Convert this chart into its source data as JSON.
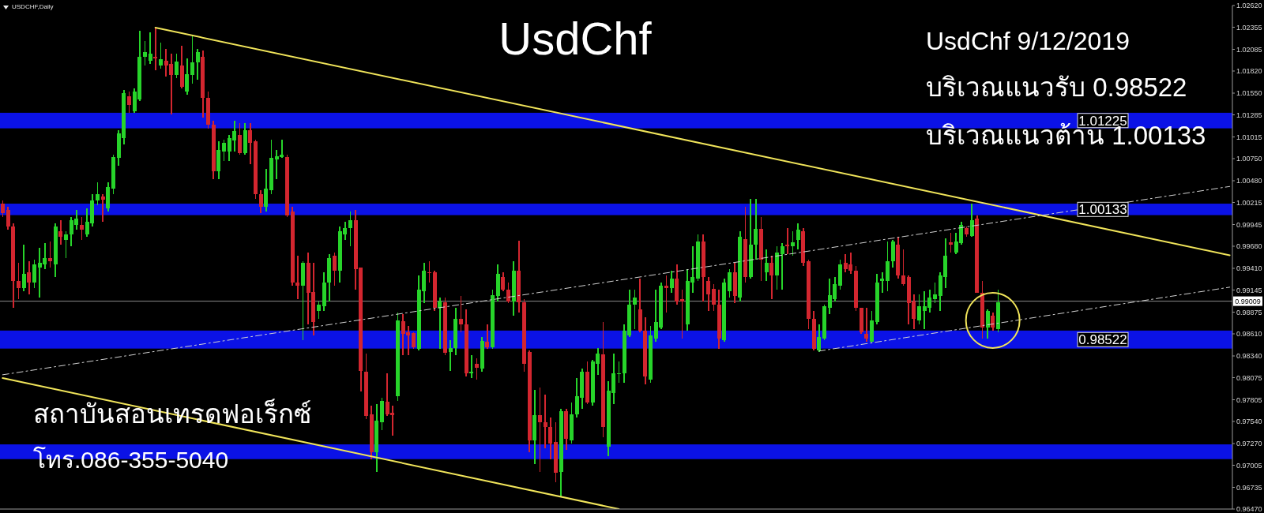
{
  "chart_data": {
    "type": "candlestick",
    "title": "UsdChf",
    "subtitle": "USDCHF,Daily",
    "annotations": [
      "UsdChf 9/12/2019",
      "บริเวณแนวรับ 0.98522",
      "บริเวณแนวต้าน 1.00133",
      "สถาบันสอนเทรดฟอเร็กซ์",
      "โทร.086-355-5040"
    ],
    "categories": [
      null,
      null,
      null,
      null,
      null,
      null,
      null,
      null,
      null,
      null,
      null,
      null,
      null,
      null,
      null,
      null,
      null,
      null,
      null,
      null,
      null,
      null,
      null,
      null,
      null,
      null,
      null,
      null,
      null,
      null,
      null,
      null,
      null,
      null,
      null,
      null,
      null,
      null,
      null,
      null,
      null,
      null,
      null,
      null,
      null,
      null,
      null,
      null,
      null,
      null,
      null,
      null,
      null,
      null,
      null,
      null,
      null,
      null,
      null,
      null,
      null,
      null,
      null,
      null,
      null,
      null,
      null,
      null,
      null,
      null,
      null,
      null,
      null,
      null,
      null,
      null,
      null,
      null,
      null,
      null,
      null,
      null,
      null,
      null,
      null,
      null,
      null,
      null,
      null,
      null,
      null,
      null,
      null,
      null,
      null,
      null,
      null,
      null,
      null,
      null,
      null,
      null,
      null,
      null,
      null,
      null,
      null,
      null,
      null,
      null,
      null,
      null,
      null,
      null,
      null,
      null,
      null,
      null,
      null,
      null,
      null,
      null,
      null,
      null,
      null,
      null,
      null,
      null,
      null,
      null,
      null,
      null,
      null,
      null,
      null,
      null,
      null,
      null,
      null,
      null,
      null,
      null,
      null,
      null,
      null,
      null,
      null,
      null,
      null,
      null,
      null,
      null,
      null,
      null,
      null,
      null,
      null,
      null,
      null,
      null,
      null,
      null,
      null,
      null,
      null,
      null,
      null,
      null,
      null,
      null,
      null,
      null,
      null,
      null,
      null,
      null,
      null,
      null,
      null,
      null,
      null,
      null,
      null,
      null,
      null,
      null,
      null,
      null,
      null,
      null,
      null,
      null,
      null,
      null,
      null,
      null,
      null,
      null,
      null,
      null,
      null,
      null,
      null,
      null,
      null,
      null,
      null,
      null,
      null,
      null,
      null,
      null,
      null,
      null,
      null,
      null,
      null,
      null,
      null,
      null,
      null,
      null,
      null,
      null,
      null,
      null,
      null,
      null,
      null,
      null,
      null,
      null,
      null,
      null
    ],
    "ohlc": [
      [
        1.002,
        1.0024,
        1.0004,
        1.0008
      ],
      [
        1.0012,
        1.0016,
        0.9988,
        0.9992
      ],
      [
        0.9992,
        0.9996,
        0.9893,
        0.9926
      ],
      [
        0.9926,
        0.9948,
        0.9903,
        0.9917
      ],
      [
        0.9917,
        0.997,
        0.9913,
        0.9934
      ],
      [
        0.9936,
        0.995,
        0.9909,
        0.9924
      ],
      [
        0.9924,
        0.9952,
        0.9917,
        0.9946
      ],
      [
        0.9942,
        0.9966,
        0.9905,
        0.9948
      ],
      [
        0.9946,
        0.9972,
        0.994,
        0.9954
      ],
      [
        0.9954,
        0.9974,
        0.9942,
        0.995
      ],
      [
        0.9946,
        0.9996,
        0.993,
        0.9992
      ],
      [
        0.9986,
        1.0,
        0.997,
        0.998
      ],
      [
        0.9976,
        0.9986,
        0.9954,
        0.9982
      ],
      [
        0.9982,
        1.0004,
        0.9968,
        1.0
      ],
      [
        0.9994,
        1.0012,
        0.9988,
        1.0002
      ],
      [
        0.9994,
        1.0004,
        0.9976,
        0.9988
      ],
      [
        0.9982,
        1.0014,
        0.998,
        0.9998
      ],
      [
        0.9996,
        1.0032,
        0.9992,
        1.0024
      ],
      [
        1.0024,
        1.0046,
        1.0018,
        1.0032
      ],
      [
        1.0029,
        1.0032,
        0.9998,
        1.0025
      ],
      [
        1.0014,
        1.0046,
        1.001,
        1.004
      ],
      [
        1.0038,
        1.008,
        1.0032,
        1.0077
      ],
      [
        1.0076,
        1.011,
        1.0066,
        1.0106
      ],
      [
        1.01,
        1.0159,
        1.0092,
        1.0155
      ],
      [
        1.0151,
        1.0157,
        1.0131,
        1.0141
      ],
      [
        1.0133,
        1.0161,
        1.0131,
        1.0157
      ],
      [
        1.0147,
        1.0231,
        1.0145,
        1.0199
      ],
      [
        1.0199,
        1.0219,
        1.0189,
        1.0205
      ],
      [
        1.0195,
        1.0229,
        1.0191,
        1.0203
      ],
      [
        1.0199,
        1.0235,
        1.0183,
        1.0197
      ],
      [
        1.0189,
        1.0217,
        1.0185,
        1.0196
      ],
      [
        1.0195,
        1.0209,
        1.0175,
        1.0189
      ],
      [
        1.0191,
        1.0203,
        1.0129,
        1.0177
      ],
      [
        1.0177,
        1.0203,
        1.0173,
        1.0194
      ],
      [
        1.0189,
        1.0213,
        1.0161,
        1.0163
      ],
      [
        1.0157,
        1.0197,
        1.0153,
        1.0178
      ],
      [
        1.0177,
        1.0225,
        1.0167,
        1.0193
      ],
      [
        1.0193,
        1.0209,
        1.0171,
        1.0205
      ],
      [
        1.0199,
        1.0207,
        1.0125,
        1.0149
      ],
      [
        1.0149,
        1.0157,
        1.0112,
        1.0116
      ],
      [
        1.0116,
        1.0121,
        1.005,
        1.006
      ],
      [
        1.006,
        1.0096,
        1.005,
        1.0086
      ],
      [
        1.0084,
        1.0098,
        1.0072,
        1.0094
      ],
      [
        1.0084,
        1.0104,
        1.0072,
        1.01
      ],
      [
        1.0097,
        1.0121,
        1.0084,
        1.0109
      ],
      [
        1.0104,
        1.0118,
        1.008,
        1.0082
      ],
      [
        1.0082,
        1.0118,
        1.008,
        1.011
      ],
      [
        1.011,
        1.0118,
        1.0068,
        1.0094
      ],
      [
        1.0096,
        1.0098,
        1.0026,
        1.0032
      ],
      [
        1.0032,
        1.0036,
        1.0008,
        1.0016
      ],
      [
        1.0016,
        1.0062,
        1.001,
        1.0038
      ],
      [
        1.0036,
        1.0098,
        1.0032,
        1.0076
      ],
      [
        1.0074,
        1.0086,
        1.005,
        1.0078
      ],
      [
        1.0077,
        1.0098,
        1.0076,
        1.008
      ],
      [
        1.0077,
        1.008,
        1.0004,
        1.0006
      ],
      [
        1.001,
        1.0016,
        0.992,
        0.9924
      ],
      [
        0.9924,
        0.9956,
        0.9903,
        0.992
      ],
      [
        0.992,
        0.995,
        0.9853,
        0.9948
      ],
      [
        0.9948,
        0.996,
        0.9873,
        0.9911
      ],
      [
        0.9912,
        0.9948,
        0.9859,
        0.9875
      ],
      [
        0.9889,
        0.9901,
        0.9879,
        0.9897
      ],
      [
        0.9895,
        0.9936,
        0.9889,
        0.9924
      ],
      [
        0.9924,
        0.9958,
        0.9901,
        0.9954
      ],
      [
        0.9956,
        0.996,
        0.992,
        0.9938
      ],
      [
        0.9938,
        0.9992,
        0.9924,
        0.9986
      ],
      [
        0.9982,
        0.9998,
        0.9976,
        0.999
      ],
      [
        0.999,
        1.001,
        0.9968,
        1.0
      ],
      [
        1.0,
        1.0012,
        0.9915,
        0.994
      ],
      [
        0.9942,
        0.9942,
        0.9791,
        0.9816
      ],
      [
        0.9815,
        0.9837,
        0.9757,
        0.9761
      ],
      [
        0.9763,
        0.9773,
        0.9708,
        0.9716
      ],
      [
        0.9716,
        0.9775,
        0.9692,
        0.9755
      ],
      [
        0.9753,
        0.9783,
        0.9743,
        0.9779
      ],
      [
        0.9778,
        0.9813,
        0.9761,
        0.9763
      ],
      [
        0.9765,
        0.9773,
        0.9737,
        0.9762
      ],
      [
        0.9785,
        0.9887,
        0.9779,
        0.9877
      ],
      [
        0.9876,
        0.9885,
        0.9835,
        0.9861
      ],
      [
        0.9863,
        0.9871,
        0.9835,
        0.9859
      ],
      [
        0.9862,
        0.9863,
        0.9843,
        0.9845
      ],
      [
        0.9843,
        0.9932,
        0.9841,
        0.9915
      ],
      [
        0.9913,
        0.9948,
        0.9899,
        0.9938
      ],
      [
        0.9936,
        0.995,
        0.9924,
        0.9935
      ],
      [
        0.9936,
        0.9938,
        0.9889,
        0.9893
      ],
      [
        0.9893,
        0.9905,
        0.9843,
        0.9901
      ],
      [
        0.99,
        0.9905,
        0.9835,
        0.9838
      ],
      [
        0.9839,
        0.9853,
        0.9816,
        0.9844
      ],
      [
        0.9844,
        0.9893,
        0.9835,
        0.9879
      ],
      [
        0.9879,
        0.9907,
        0.9863,
        0.9873
      ],
      [
        0.9873,
        0.9891,
        0.9809,
        0.9813
      ],
      [
        0.9813,
        0.9835,
        0.9807,
        0.9815
      ],
      [
        0.9824,
        0.9831,
        0.9805,
        0.982
      ],
      [
        0.9819,
        0.9857,
        0.9815,
        0.9852
      ],
      [
        0.9851,
        0.9873,
        0.9843,
        0.9845
      ],
      [
        0.9845,
        0.9915,
        0.9843,
        0.9908
      ],
      [
        0.9907,
        0.9946,
        0.9901,
        0.9934
      ],
      [
        0.993,
        0.9936,
        0.9913,
        0.9915
      ],
      [
        0.9915,
        0.9924,
        0.9899,
        0.9901
      ],
      [
        0.9901,
        0.995,
        0.9883,
        0.9938
      ],
      [
        0.9938,
        0.9975,
        0.9887,
        0.99
      ],
      [
        0.99,
        0.9903,
        0.9815,
        0.9824
      ],
      [
        0.9839,
        0.9841,
        0.9716,
        0.9731
      ],
      [
        0.9731,
        0.9793,
        0.9702,
        0.9762
      ],
      [
        0.9762,
        0.9795,
        0.9692,
        0.9753
      ],
      [
        0.9753,
        0.9787,
        0.9721,
        0.9747
      ],
      [
        0.9747,
        0.9759,
        0.9708,
        0.9727
      ],
      [
        0.9729,
        0.9753,
        0.968,
        0.9691
      ],
      [
        0.9692,
        0.9769,
        0.9662,
        0.9767
      ],
      [
        0.9767,
        0.9769,
        0.9719,
        0.9733
      ],
      [
        0.9731,
        0.9777,
        0.9727,
        0.9763
      ],
      [
        0.9763,
        0.9807,
        0.9759,
        0.9785
      ],
      [
        0.9783,
        0.9819,
        0.9769,
        0.9815
      ],
      [
        0.9815,
        0.9827,
        0.9775,
        0.9777
      ],
      [
        0.9777,
        0.9829,
        0.9773,
        0.9827
      ],
      [
        0.9824,
        0.9844,
        0.9811,
        0.9837
      ],
      [
        0.9836,
        0.9875,
        0.9735,
        0.9747
      ],
      [
        0.9723,
        0.9803,
        0.9712,
        0.9792
      ],
      [
        0.9789,
        0.9837,
        0.9775,
        0.9813
      ],
      [
        0.9812,
        0.9827,
        0.9801,
        0.9813
      ],
      [
        0.9813,
        0.9873,
        0.9801,
        0.9865
      ],
      [
        0.9859,
        0.9915,
        0.9857,
        0.9897
      ],
      [
        0.9897,
        0.9915,
        0.9867,
        0.9905
      ],
      [
        0.9891,
        0.9928,
        0.9863,
        0.9865
      ],
      [
        0.9865,
        0.9881,
        0.9799,
        0.9809
      ],
      [
        0.9805,
        0.9871,
        0.9801,
        0.9859
      ],
      [
        0.9855,
        0.9915,
        0.9851,
        0.9875
      ],
      [
        0.9869,
        0.9924,
        0.9867,
        0.992
      ],
      [
        0.992,
        0.9932,
        0.9887,
        0.9917
      ],
      [
        0.9917,
        0.9938,
        0.9911,
        0.9928
      ],
      [
        0.9928,
        0.9946,
        0.9897,
        0.9901
      ],
      [
        0.9903,
        0.9915,
        0.9855,
        0.9901
      ],
      [
        0.9873,
        0.994,
        0.9865,
        0.9926
      ],
      [
        0.9924,
        0.9968,
        0.9911,
        0.993
      ],
      [
        0.9928,
        0.9982,
        0.9926,
        0.9974
      ],
      [
        0.9974,
        0.9982,
        0.9901,
        0.993
      ],
      [
        0.9926,
        0.993,
        0.9889,
        0.9909
      ],
      [
        0.9916,
        0.9922,
        0.9889,
        0.9897
      ],
      [
        0.9897,
        0.9915,
        0.9843,
        0.9855
      ],
      [
        0.9853,
        0.9928,
        0.9851,
        0.9924
      ],
      [
        0.9913,
        0.994,
        0.9905,
        0.9936
      ],
      [
        0.9936,
        0.9948,
        0.9899,
        0.9907
      ],
      [
        0.9905,
        0.9986,
        0.9901,
        0.998
      ],
      [
        0.9977,
        1.0016,
        0.9924,
        0.993
      ],
      [
        0.993,
        1.0026,
        0.9928,
        0.997
      ],
      [
        0.997,
        1.0026,
        0.9952,
        0.9989
      ],
      [
        0.9989,
        1.0004,
        0.9926,
        0.9952
      ],
      [
        0.9936,
        0.9964,
        0.9926,
        0.9948
      ],
      [
        0.9948,
        0.9956,
        0.9903,
        0.9932
      ],
      [
        0.9932,
        0.9968,
        0.9915,
        0.996
      ],
      [
        0.9958,
        0.9972,
        0.9915,
        0.9968
      ],
      [
        0.997,
        0.999,
        0.9958,
        0.9968
      ],
      [
        0.9968,
        0.9986,
        0.9956,
        0.9973
      ],
      [
        0.9976,
        0.9996,
        0.9964,
        0.9988
      ],
      [
        0.9986,
        0.999,
        0.9944,
        0.9948
      ],
      [
        0.995,
        0.9952,
        0.9867,
        0.9879
      ],
      [
        0.9879,
        0.9889,
        0.9841,
        0.9843
      ],
      [
        0.9841,
        0.9873,
        0.9839,
        0.9857
      ],
      [
        0.9855,
        0.9897,
        0.9853,
        0.9895
      ],
      [
        0.9893,
        0.9928,
        0.9885,
        0.9908
      ],
      [
        0.9903,
        0.993,
        0.9901,
        0.9922
      ],
      [
        0.992,
        0.9952,
        0.9915,
        0.9946
      ],
      [
        0.9948,
        0.9958,
        0.9936,
        0.994
      ],
      [
        0.9946,
        0.996,
        0.9934,
        0.9938
      ],
      [
        0.9938,
        0.9944,
        0.9889,
        0.9893
      ],
      [
        0.9893,
        0.9893,
        0.9861,
        0.9863
      ],
      [
        0.9861,
        0.9893,
        0.9851,
        0.9855
      ],
      [
        0.9851,
        0.9889,
        0.9849,
        0.9877
      ],
      [
        0.9875,
        0.9934,
        0.9873,
        0.9924
      ],
      [
        0.9926,
        0.9936,
        0.9911,
        0.9928
      ],
      [
        0.9926,
        0.9974,
        0.9913,
        0.995
      ],
      [
        0.995,
        0.9976,
        0.9942,
        0.9974
      ],
      [
        0.997,
        0.998,
        0.9928,
        0.9932
      ],
      [
        0.9932,
        0.9964,
        0.992,
        0.9922
      ],
      [
        0.993,
        0.9932,
        0.9873,
        0.9899
      ],
      [
        0.9901,
        0.9909,
        0.9867,
        0.9879
      ],
      [
        0.9877,
        0.9909,
        0.9873,
        0.9895
      ],
      [
        0.9889,
        0.9913,
        0.9867,
        0.9895
      ],
      [
        0.9893,
        0.9915,
        0.9887,
        0.9905
      ],
      [
        0.9903,
        0.9924,
        0.9899,
        0.9909
      ],
      [
        0.9907,
        0.9936,
        0.9889,
        0.9932
      ],
      [
        0.993,
        0.9978,
        0.9917,
        0.9956
      ],
      [
        0.9973,
        0.9984,
        0.996,
        0.997
      ],
      [
        0.996,
        0.9984,
        0.9958,
        0.9974
      ],
      [
        0.9972,
        0.9998,
        0.997,
        0.9994
      ],
      [
        0.999,
        0.9992,
        0.998,
        0.9982
      ],
      [
        0.9981,
        1.002,
        0.998,
        1.0
      ],
      [
        1.0002,
        1.0006,
        0.9911,
        0.9911
      ],
      [
        0.9911,
        0.9926,
        0.9855,
        0.9869
      ],
      [
        0.9869,
        0.9891,
        0.9855,
        0.9889
      ],
      [
        0.9883,
        0.9887,
        0.9865,
        0.9869
      ],
      [
        0.9867,
        0.9915,
        0.9863,
        0.99
      ],
      null,
      null,
      null,
      null,
      null,
      null,
      null,
      null,
      null,
      null,
      null,
      null,
      null,
      null,
      null,
      null,
      null,
      null,
      null,
      null,
      null,
      null,
      null,
      null,
      null,
      null,
      null,
      null,
      null,
      null,
      null,
      null,
      null,
      null,
      null,
      null,
      null,
      null,
      null,
      null,
      null,
      null,
      null,
      null
    ],
    "colors": [
      "#d3262f",
      "#d3262f",
      "#d3262f",
      "#d3262f",
      "#27d42a",
      "#d3262f",
      "#27d42a",
      "#27d42a",
      "#27d42a",
      "#d3262f",
      "#27d42a",
      "#d3262f",
      "#27d42a",
      "#27d42a",
      "#27d42a",
      "#d3262f",
      "#27d42a",
      "#27d42a",
      "#27d42a",
      "#d3262f",
      "#27d42a",
      "#27d42a",
      "#27d42a",
      "#27d42a",
      "#d3262f",
      "#27d42a",
      "#27d42a",
      "#27d42a",
      "#27d42a",
      "#d3262f",
      "#27d42a",
      "#d3262f",
      "#d3262f",
      "#27d42a",
      "#d3262f",
      "#27d42a",
      "#27d42a",
      "#27d42a",
      "#d3262f",
      "#d3262f",
      "#d3262f",
      "#27d42a",
      "#27d42a",
      "#27d42a",
      "#27d42a",
      "#d3262f",
      "#27d42a",
      "#d3262f",
      "#d3262f",
      "#d3262f",
      "#27d42a",
      "#27d42a",
      "#27d42a",
      "#27d42a",
      "#d3262f",
      "#d3262f",
      "#d3262f",
      "#27d42a",
      "#d3262f",
      "#d3262f",
      "#27d42a",
      "#27d42a",
      "#27d42a",
      "#d3262f",
      "#27d42a",
      "#27d42a",
      "#27d42a",
      "#d3262f",
      "#d3262f",
      "#d3262f",
      "#d3262f",
      "#27d42a",
      "#27d42a",
      "#d3262f",
      "#d3262f",
      "#27d42a",
      "#d3262f",
      "#d3262f",
      "#d3262f",
      "#27d42a",
      "#27d42a",
      "#d3262f",
      "#d3262f",
      "#27d42a",
      "#d3262f",
      "#27d42a",
      "#27d42a",
      "#d3262f",
      "#d3262f",
      "#27d42a",
      "#d3262f",
      "#27d42a",
      "#d3262f",
      "#27d42a",
      "#27d42a",
      "#d3262f",
      "#d3262f",
      "#27d42a",
      "#d3262f",
      "#d3262f",
      "#d3262f",
      "#27d42a",
      "#d3262f",
      "#d3262f",
      "#d3262f",
      "#d3262f",
      "#27d42a",
      "#d3262f",
      "#27d42a",
      "#27d42a",
      "#27d42a",
      "#d3262f",
      "#27d42a",
      "#27d42a",
      "#d3262f",
      "#27d42a",
      "#27d42a",
      "#27d42a",
      "#27d42a",
      "#27d42a",
      "#27d42a",
      "#d3262f",
      "#d3262f",
      "#27d42a",
      "#27d42a",
      "#27d42a",
      "#d3262f",
      "#27d42a",
      "#d3262f",
      "#d3262f",
      "#27d42a",
      "#27d42a",
      "#27d42a",
      "#d3262f",
      "#d3262f",
      "#d3262f",
      "#d3262f",
      "#27d42a",
      "#27d42a",
      "#d3262f",
      "#27d42a",
      "#d3262f",
      "#27d42a",
      "#27d42a",
      "#d3262f",
      "#27d42a",
      "#d3262f",
      "#27d42a",
      "#27d42a",
      "#d3262f",
      "#27d42a",
      "#27d42a",
      "#d3262f",
      "#d3262f",
      "#d3262f",
      "#27d42a",
      "#27d42a",
      "#27d42a",
      "#27d42a",
      "#27d42a",
      "#d3262f",
      "#d3262f",
      "#d3262f",
      "#d3262f",
      "#d3262f",
      "#27d42a",
      "#27d42a",
      "#27d42a",
      "#27d42a",
      "#27d42a",
      "#d3262f",
      "#d3262f",
      "#d3262f",
      "#d3262f",
      "#27d42a",
      "#27d42a",
      "#27d42a",
      "#27d42a",
      "#27d42a",
      "#27d42a",
      "#d3262f",
      "#27d42a",
      "#27d42a",
      "#d3262f",
      "#27d42a",
      "#d3262f",
      "#d3262f",
      "#27d42a",
      "#d3262f",
      "#27d42a",
      null,
      null,
      null,
      null,
      null,
      null,
      null,
      null,
      null,
      null,
      null,
      null,
      null,
      null,
      null,
      null,
      null,
      null,
      null,
      null,
      null,
      null,
      null,
      null,
      null,
      null,
      null,
      null,
      null,
      null,
      null,
      null,
      null,
      null,
      null,
      null,
      null,
      null,
      null,
      null,
      null,
      null,
      null,
      null
    ],
    "series": [
      {
        "type": "line",
        "color": "#f0e45a",
        "line_style": "solid",
        "values": [
          null,
          null,
          null,
          null,
          null,
          null,
          null,
          null,
          null,
          null,
          null,
          null,
          null,
          null,
          null,
          null,
          null,
          null,
          null,
          null,
          null,
          null,
          null,
          null,
          null,
          null,
          null,
          null,
          null,
          1.0235,
          null,
          null,
          null,
          null,
          null,
          null,
          null,
          null,
          null,
          null,
          null,
          null,
          null,
          null,
          null,
          null,
          null,
          null,
          null,
          null,
          null,
          null,
          null,
          null,
          null,
          null,
          null,
          null,
          null,
          null,
          null,
          null,
          null,
          null,
          null,
          null,
          null,
          null,
          null,
          null,
          null,
          null,
          null,
          null,
          null,
          null,
          null,
          null,
          null,
          null,
          null,
          null,
          null,
          null,
          null,
          null,
          null,
          null,
          null,
          null,
          null,
          null,
          null,
          null,
          null,
          null,
          null,
          null,
          null,
          null,
          null,
          null,
          null,
          null,
          null,
          null,
          null,
          null,
          null,
          null,
          null,
          null,
          null,
          null,
          null,
          null,
          null,
          null,
          null,
          null,
          null,
          null,
          null,
          null,
          null,
          null,
          null,
          null,
          null,
          null,
          null,
          null,
          null,
          null,
          null,
          null,
          null,
          null,
          null,
          null,
          null,
          null,
          null,
          null,
          null,
          null,
          null,
          null,
          null,
          null,
          null,
          null,
          null,
          null,
          null,
          null,
          null,
          null,
          null,
          null,
          null,
          null,
          null,
          null,
          null,
          null,
          null,
          null,
          null,
          null,
          null,
          null,
          null,
          null,
          null,
          null,
          null,
          null,
          null,
          null,
          null,
          null,
          null,
          null,
          null,
          null,
          null,
          null,
          null,
          null,
          null,
          null,
          null,
          null,
          null,
          null,
          null,
          null,
          null,
          null,
          null,
          null,
          null,
          null,
          null,
          null,
          null,
          null,
          null,
          null,
          null,
          null,
          null,
          null,
          null,
          null,
          null,
          null,
          null,
          null,
          null,
          null,
          null,
          null,
          null,
          null,
          null,
          null,
          null,
          null,
          null,
          null,
          null,
          0.9957
        ]
      },
      {
        "type": "line",
        "color": "#f0e45a",
        "line_style": "solid",
        "values": [
          0.9807,
          null,
          null,
          null,
          null,
          null,
          null,
          null,
          null,
          null,
          null,
          null,
          null,
          null,
          null,
          null,
          null,
          null,
          null,
          null,
          null,
          null,
          null,
          null,
          null,
          null,
          null,
          null,
          null,
          null,
          null,
          null,
          null,
          null,
          null,
          null,
          null,
          null,
          null,
          null,
          null,
          null,
          null,
          null,
          null,
          null,
          null,
          null,
          null,
          null,
          null,
          null,
          null,
          null,
          null,
          null,
          null,
          null,
          null,
          null,
          null,
          null,
          null,
          null,
          null,
          null,
          null,
          null,
          null,
          null,
          null,
          null,
          null,
          null,
          null,
          null,
          null,
          null,
          null,
          null,
          null,
          null,
          null,
          null,
          null,
          null,
          null,
          null,
          null,
          null,
          null,
          null,
          null,
          null,
          null,
          null,
          null,
          null,
          null,
          null,
          null,
          null,
          null,
          null,
          null,
          null,
          null,
          null,
          null,
          null,
          null,
          null,
          null,
          null,
          null,
          null,
          null,
          0.9647,
          null,
          null,
          null,
          null,
          null,
          null,
          null,
          null,
          null,
          null,
          null,
          null,
          null,
          null,
          null,
          null,
          null,
          null,
          null,
          null,
          null,
          null,
          null,
          null,
          null,
          null,
          null,
          null,
          null,
          null,
          null,
          null,
          null,
          null,
          null,
          null,
          null,
          null,
          null,
          null,
          null,
          null,
          null,
          null,
          null,
          null,
          null,
          null,
          null,
          null,
          null,
          null,
          null,
          null,
          null,
          null,
          null,
          null,
          null,
          null,
          null,
          null,
          null,
          null,
          null,
          null,
          null,
          null,
          null,
          null,
          null,
          null,
          null,
          null,
          null,
          null,
          null,
          null,
          null,
          null,
          null,
          null,
          null,
          null,
          null,
          null,
          null,
          null,
          null,
          null,
          null,
          null,
          null,
          null,
          null,
          null,
          null,
          null,
          null,
          null,
          null,
          null,
          null,
          null,
          null,
          null,
          null,
          null,
          null,
          null,
          null,
          null,
          null,
          null,
          null,
          null
        ]
      },
      {
        "type": "line",
        "color": "#d2d2d2",
        "line_style": "dashed",
        "values": [
          0.9811,
          null,
          null,
          null,
          null,
          null,
          null,
          null,
          null,
          null,
          null,
          null,
          null,
          null,
          null,
          null,
          null,
          null,
          null,
          null,
          null,
          null,
          null,
          null,
          null,
          null,
          null,
          null,
          null,
          null,
          null,
          null,
          null,
          null,
          null,
          null,
          null,
          null,
          null,
          null,
          null,
          null,
          null,
          null,
          null,
          null,
          null,
          null,
          null,
          null,
          null,
          null,
          null,
          null,
          null,
          null,
          null,
          null,
          null,
          null,
          null,
          null,
          null,
          null,
          null,
          null,
          null,
          null,
          null,
          null,
          null,
          null,
          null,
          null,
          null,
          null,
          null,
          null,
          null,
          null,
          null,
          null,
          null,
          null,
          null,
          null,
          null,
          null,
          null,
          null,
          null,
          null,
          null,
          null,
          null,
          null,
          null,
          null,
          null,
          null,
          null,
          null,
          null,
          null,
          null,
          null,
          null,
          null,
          null,
          null,
          null,
          null,
          null,
          null,
          null,
          null,
          null,
          null,
          null,
          null,
          null,
          null,
          null,
          null,
          null,
          null,
          null,
          null,
          null,
          null,
          null,
          null,
          null,
          null,
          null,
          null,
          null,
          null,
          null,
          null,
          null,
          null,
          null,
          null,
          null,
          null,
          null,
          null,
          null,
          null,
          null,
          null,
          null,
          null,
          null,
          null,
          null,
          null,
          null,
          null,
          null,
          null,
          null,
          null,
          null,
          null,
          null,
          null,
          null,
          null,
          null,
          null,
          null,
          null,
          null,
          null,
          null,
          null,
          null,
          null,
          null,
          null,
          null,
          null,
          null,
          null,
          null,
          null,
          null,
          null,
          null,
          null,
          null,
          null,
          null,
          null,
          null,
          null,
          null,
          null,
          null,
          null,
          null,
          null,
          null,
          null,
          null,
          null,
          null,
          null,
          null,
          null,
          null,
          null,
          null,
          null,
          null,
          null,
          null,
          null,
          null,
          null,
          null,
          null,
          null,
          null,
          null,
          null,
          null,
          null,
          null,
          null,
          null,
          1.0041
        ]
      },
      {
        "type": "line",
        "color": "#d2d2d2",
        "line_style": "dashed",
        "values": [
          null,
          null,
          null,
          null,
          null,
          null,
          null,
          null,
          null,
          null,
          null,
          null,
          null,
          null,
          null,
          null,
          null,
          null,
          null,
          null,
          null,
          null,
          null,
          null,
          null,
          null,
          null,
          null,
          null,
          null,
          null,
          null,
          null,
          null,
          null,
          null,
          null,
          null,
          null,
          null,
          null,
          null,
          null,
          null,
          null,
          null,
          null,
          null,
          null,
          null,
          null,
          null,
          null,
          null,
          null,
          null,
          null,
          null,
          null,
          null,
          null,
          null,
          null,
          null,
          null,
          null,
          null,
          null,
          null,
          null,
          null,
          null,
          null,
          null,
          null,
          null,
          null,
          null,
          null,
          null,
          null,
          null,
          null,
          null,
          null,
          null,
          null,
          null,
          null,
          null,
          null,
          null,
          null,
          null,
          null,
          null,
          null,
          null,
          null,
          null,
          null,
          null,
          null,
          null,
          null,
          null,
          null,
          null,
          null,
          null,
          null,
          null,
          null,
          null,
          null,
          null,
          null,
          null,
          null,
          null,
          null,
          null,
          null,
          null,
          null,
          null,
          null,
          null,
          null,
          null,
          null,
          null,
          null,
          null,
          null,
          null,
          null,
          null,
          null,
          null,
          null,
          null,
          null,
          null,
          null,
          null,
          null,
          null,
          null,
          null,
          null,
          null,
          null,
          null,
          null,
          0.984,
          null,
          null,
          null,
          null,
          null,
          null,
          null,
          null,
          null,
          null,
          null,
          null,
          null,
          null,
          null,
          null,
          null,
          null,
          null,
          null,
          null,
          null,
          null,
          null,
          null,
          null,
          null,
          null,
          null,
          null,
          null,
          null,
          null,
          null,
          null,
          null,
          null,
          null,
          null,
          null,
          null,
          null,
          null,
          null,
          null,
          null,
          null,
          null,
          null,
          null,
          null,
          null,
          null,
          null,
          null,
          null,
          null,
          null,
          null,
          null,
          null,
          null,
          null,
          null,
          null,
          null,
          null,
          null,
          null,
          null,
          null,
          null,
          null,
          null,
          null,
          null,
          null,
          0.9918
        ]
      }
    ],
    "bands": [
      {
        "axis": "y",
        "from": 1.0112,
        "to": 1.0131,
        "label": "1.01225",
        "color": "#0b12e6"
      },
      {
        "axis": "y",
        "from": 1.0006,
        "to": 1.002,
        "label": "1.00133",
        "color": "#0b12e6"
      },
      {
        "axis": "y",
        "from": 0.9843,
        "to": 0.9865,
        "label": "0.98522",
        "color": "#0b12e6"
      },
      {
        "axis": "y",
        "from": 0.9708,
        "to": 0.9726,
        "color": "#0b12e6"
      }
    ],
    "ref_lines": [
      {
        "axis": "y",
        "value": 0.99009,
        "label": "0.99009",
        "color": "#8a8a8a"
      }
    ],
    "ylim": [
      0.9647,
      1.0262
    ],
    "yticks": [
      {
        "value": 1.0262,
        "label": "1.02620"
      },
      1.02355,
      1.02085,
      {
        "value": 1.0182,
        "label": "1.01820"
      },
      {
        "value": 1.0155,
        "label": "1.01550"
      },
      1.01285,
      1.01015,
      {
        "value": 1.0075,
        "label": "1.00750"
      },
      {
        "value": 1.0048,
        "label": "1.00480"
      },
      1.00215,
      0.99945,
      {
        "value": 0.9968,
        "label": "0.99680"
      },
      {
        "value": 0.9941,
        "label": "0.99410"
      },
      0.99145,
      0.98875,
      {
        "value": 0.9861,
        "label": "0.98610"
      },
      {
        "value": 0.9834,
        "label": "0.98340"
      },
      0.98075,
      0.97805,
      {
        "value": 0.9754,
        "label": "0.97540"
      },
      {
        "value": 0.9727,
        "label": "0.97270"
      },
      0.97005,
      0.96735,
      {
        "value": 0.9647,
        "label": "0.96470"
      }
    ],
    "tick_labels": "y"
  }
}
